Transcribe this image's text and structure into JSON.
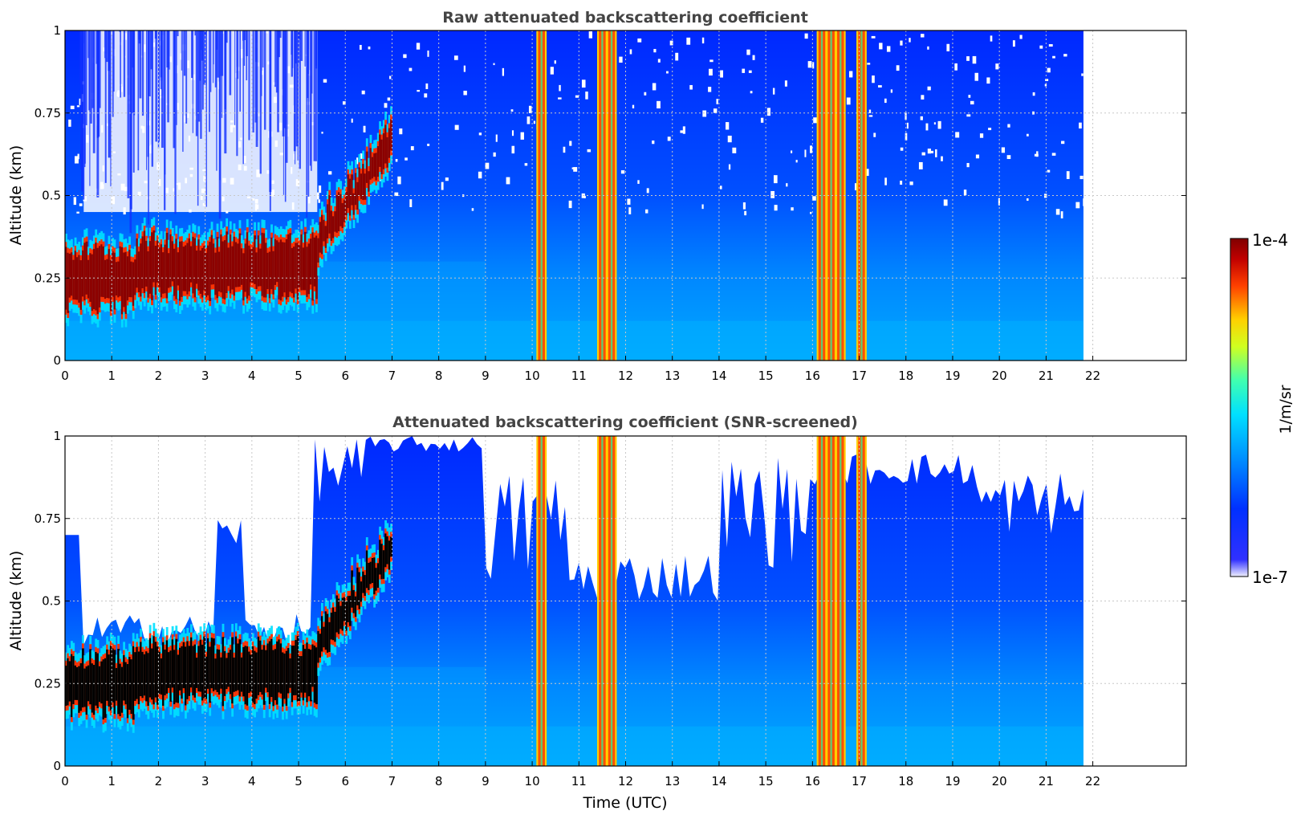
{
  "colors": {
    "jet": [
      "#f0f0ff",
      "#0000ff",
      "#0060ff",
      "#00c0ff",
      "#20e0c0",
      "#80ff80",
      "#ffff00",
      "#ff8000",
      "#ff0000",
      "#800000"
    ],
    "cloud_core": "#000000",
    "grid": "#c8c8c8"
  },
  "chart_data": [
    {
      "type": "heatmap",
      "title": "Raw attenuated backscattering coefficient",
      "xlabel": "",
      "ylabel": "Altitude (km)",
      "xlim": [
        0,
        24
      ],
      "ylim": [
        0,
        1
      ],
      "xticks": [
        "0",
        "1",
        "2",
        "3",
        "4",
        "5",
        "6",
        "7",
        "8",
        "9",
        "10",
        "11",
        "12",
        "13",
        "14",
        "15",
        "16",
        "17",
        "18",
        "19",
        "20",
        "21",
        "22"
      ],
      "yticks": [
        "0",
        "0.25",
        "0.5",
        "0.75",
        "1"
      ],
      "grid": true,
      "data_end_hour": 21.8,
      "cloud_layer": {
        "from_hour": 0,
        "to_hour": 5.4,
        "base_km": 0.17,
        "top_km": 0.33,
        "rising_until_hour": 7.0
      },
      "rain_or_fog_bands_hour": [
        10.2,
        11.5,
        11.7,
        16.2,
        16.4,
        16.6,
        17.05
      ],
      "color_scale": "log",
      "vmin": "1e-7",
      "vmax": "1e-4"
    },
    {
      "type": "heatmap",
      "title": "Attenuated backscattering coefficient (SNR-screened)",
      "xlabel": "Time (UTC)",
      "ylabel": "Altitude (km)",
      "xlim": [
        0,
        24
      ],
      "ylim": [
        0,
        1
      ],
      "xticks": [
        "0",
        "1",
        "2",
        "3",
        "4",
        "5",
        "6",
        "7",
        "8",
        "9",
        "10",
        "11",
        "12",
        "13",
        "14",
        "15",
        "16",
        "17",
        "18",
        "19",
        "20",
        "21",
        "22"
      ],
      "yticks": [
        "0",
        "0.25",
        "0.5",
        "0.75",
        "1"
      ],
      "grid": true,
      "data_end_hour": 21.8,
      "cloud_layer": {
        "from_hour": 0,
        "to_hour": 5.4,
        "base_km": 0.17,
        "top_km": 0.33,
        "rising_until_hour": 7.0
      },
      "rain_or_fog_bands_hour": [
        10.2,
        11.5,
        11.7,
        16.2,
        16.4,
        16.6,
        17.05
      ],
      "color_scale": "log",
      "vmin": "1e-7",
      "vmax": "1e-4"
    }
  ],
  "colorbar": {
    "label": "1/m/sr",
    "max_label": "1e-4",
    "min_label": "1e-7"
  }
}
